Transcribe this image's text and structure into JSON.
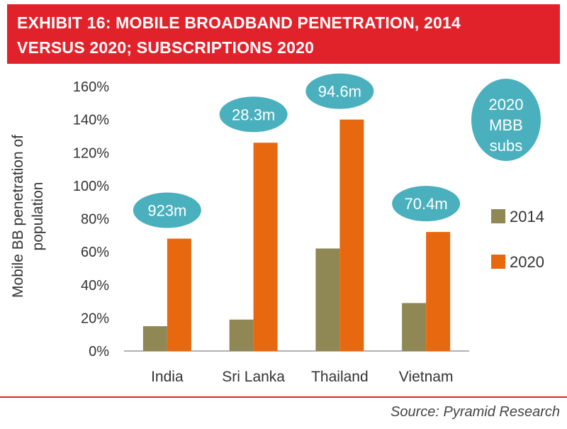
{
  "header": {
    "title_line1": "EXHIBIT 16: MOBILE BROADBAND PENETRATION, 2014",
    "title_line2": "VERSUS 2020; SUBSCRIPTIONS 2020"
  },
  "source": "Source: Pyramid Research",
  "colors": {
    "header_bg": "#e2222b",
    "series_2014": "#8f8754",
    "series_2020": "#e8680f",
    "bubble": "#4ab0bd"
  },
  "chart_data": {
    "type": "bar",
    "title": "EXHIBIT 16: MOBILE BROADBAND PENETRATION, 2014 VERSUS 2020; SUBSCRIPTIONS 2020",
    "ylabel_lines": [
      "Mobile BB penetration of",
      "population"
    ],
    "xlabel": "",
    "categories": [
      "India",
      "Sri Lanka",
      "Thailand",
      "Vietnam"
    ],
    "series": [
      {
        "name": "2014",
        "values": [
          15,
          19,
          62,
          29
        ],
        "color": "#8f8754"
      },
      {
        "name": "2020",
        "values": [
          68,
          126,
          140,
          72
        ],
        "color": "#e8680f"
      }
    ],
    "ylim": [
      0,
      160
    ],
    "y_ticks": [
      "0%",
      "20%",
      "40%",
      "60%",
      "80%",
      "100%",
      "120%",
      "140%",
      "160%"
    ],
    "annotations": [
      "923m",
      "28.3m",
      "94.6m",
      "70.4m"
    ],
    "subs_bubble_lines": [
      "2020",
      "MBB",
      "subs"
    ],
    "legend_position": "right",
    "grid": false
  }
}
